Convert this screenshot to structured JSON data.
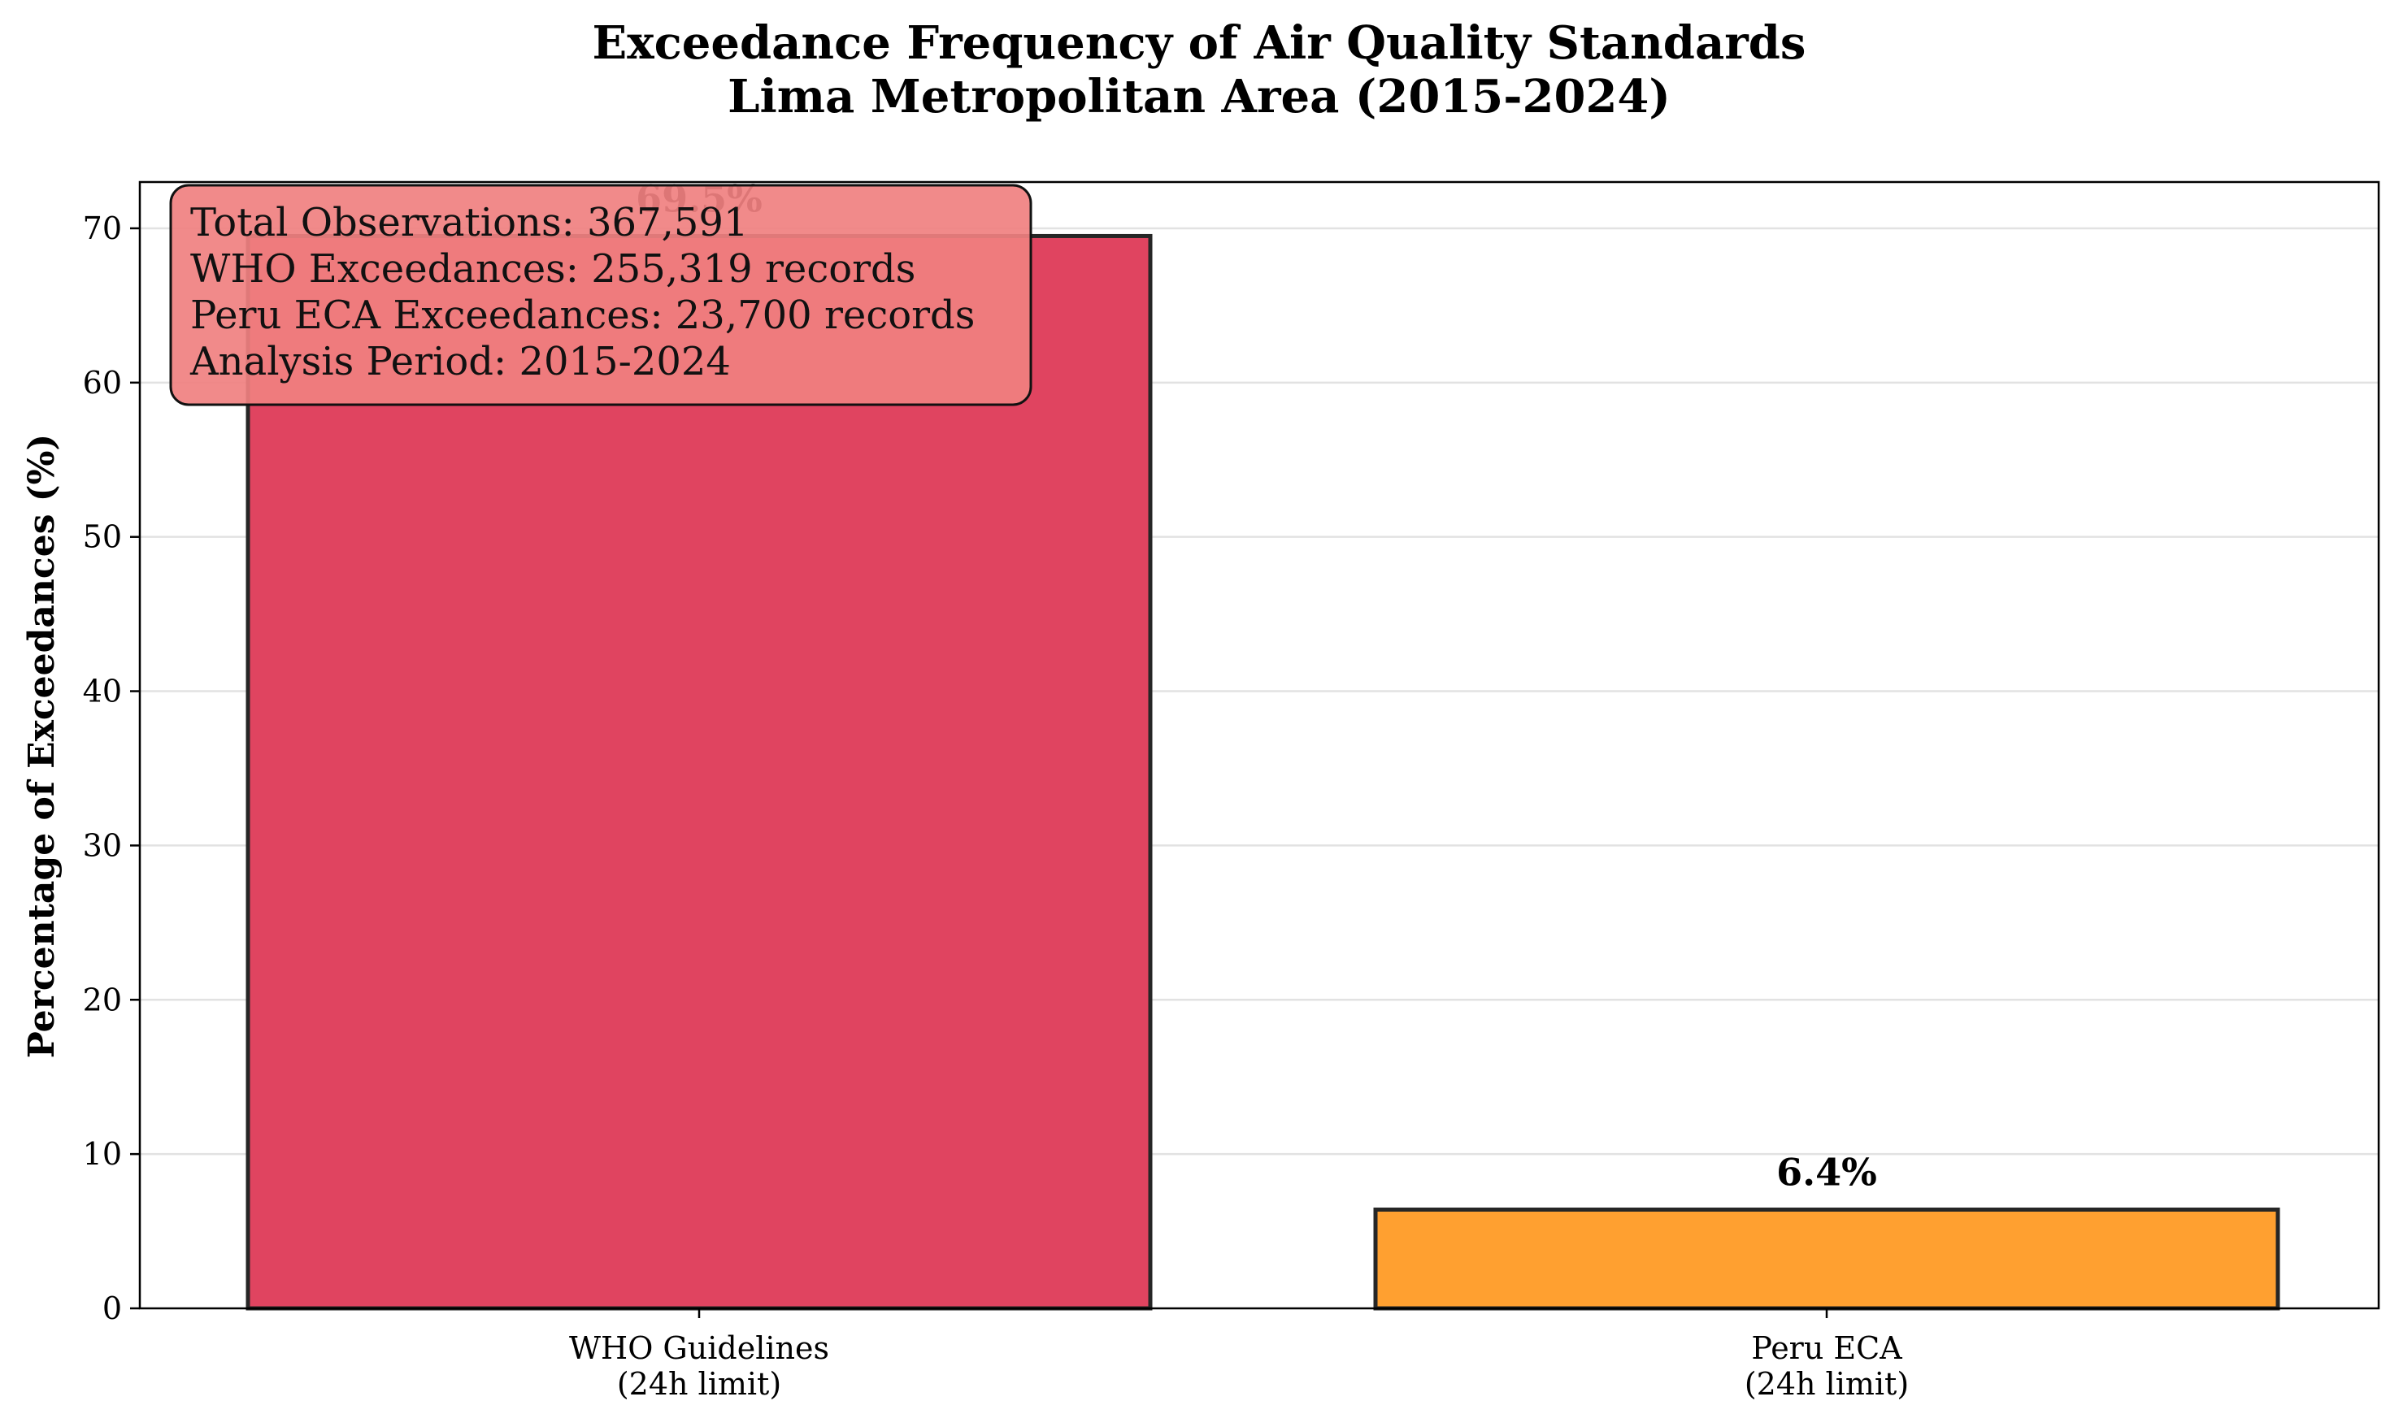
{
  "chart_data": {
    "type": "bar",
    "title": "Exceedance Frequency of Air Quality Standards",
    "subtitle": "Lima Metropolitan Area (2015-2024)",
    "xlabel": "",
    "ylabel": "Percentage of Exceedances (%)",
    "ylim": [
      0,
      73
    ],
    "yticks": [
      "0",
      "10",
      "20",
      "30",
      "40",
      "50",
      "60",
      "70"
    ],
    "grid": "y",
    "categories": [
      [
        "WHO Guidelines",
        "(24h limit)"
      ],
      [
        "Peru ECA",
        "(24h limit)"
      ]
    ],
    "values": [
      69.5,
      6.4
    ],
    "value_labels": [
      "69.5%",
      "6.4%"
    ],
    "colors": [
      "#e04460",
      "#ffa030"
    ],
    "annotation": {
      "position": "top-left",
      "lines": [
        "Total Observations: 367,591",
        "WHO Exceedances: 255,319 records",
        "Peru ECA Exceedances: 23,700 records",
        "Analysis Period: 2015-2024"
      ],
      "background": "#f08080"
    }
  }
}
